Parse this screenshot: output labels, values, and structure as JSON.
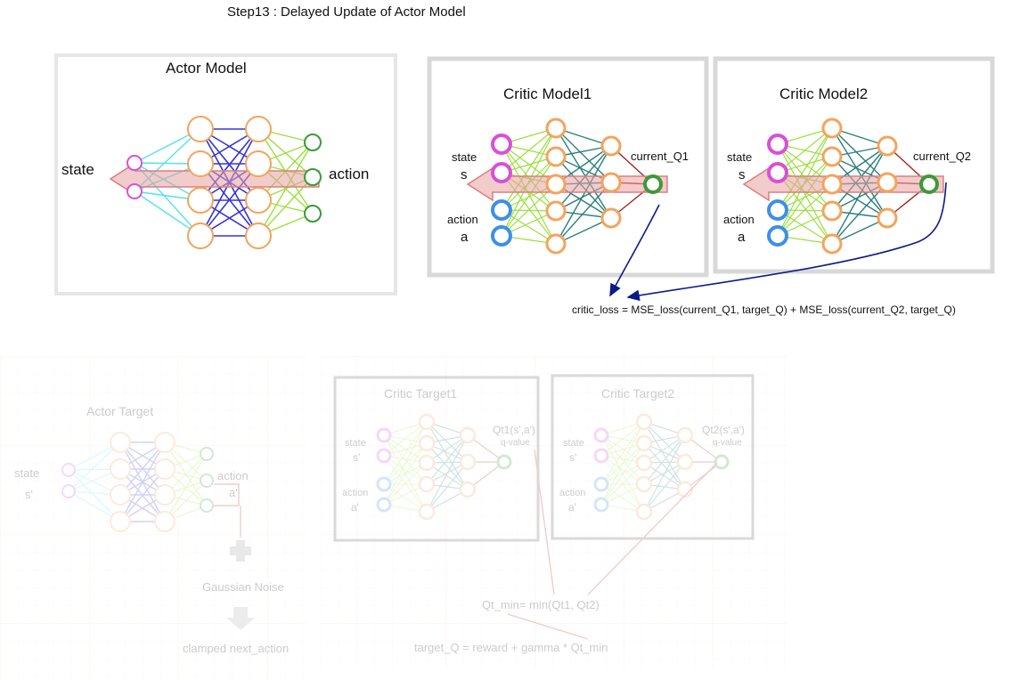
{
  "title": "Step13 : Delayed Update of Actor Model",
  "actor_model": {
    "title": "Actor Model",
    "input_label": "state",
    "output_label": "action"
  },
  "critic1": {
    "title": "Critic Model1",
    "state_label": "state",
    "state_symbol": "s",
    "action_label": "action",
    "action_symbol": "a",
    "output_label": "current_Q1"
  },
  "critic2": {
    "title": "Critic Model2",
    "state_label": "state",
    "state_symbol": "s",
    "action_label": "action",
    "action_symbol": "a",
    "output_label": "current_Q2"
  },
  "loss_formula": "critic_loss = MSE_loss(current_Q1, target_Q) + MSE_loss(current_Q2, target_Q)",
  "actor_target": {
    "title": "Actor Target",
    "state_label": "state",
    "state_symbol": "s'",
    "action_label": "action",
    "action_symbol": "a'",
    "noise_label": "Gaussian Noise",
    "clamped_label": "clamped next_action"
  },
  "critic_target1": {
    "title": "Critic Target1",
    "state_label": "state",
    "state_symbol": "s'",
    "action_label": "action",
    "action_symbol": "a'",
    "output_label": "Qt1(s',a')",
    "output_sub": "q-value"
  },
  "critic_target2": {
    "title": "Critic Target2",
    "state_label": "state",
    "state_symbol": "s'",
    "action_label": "action",
    "action_symbol": "a'",
    "output_label": "Qt2(s',a')",
    "output_sub": "q-value"
  },
  "qt_min_formula": "Qt_min= min(Qt1, Qt2)",
  "target_q_formula": "target_Q = reward + gamma *  Qt_min",
  "colors": {
    "orange": "#f5a35a",
    "magenta": "#d850d8",
    "blue": "#3d8fe8",
    "green": "#3a9a3a",
    "teal": "#2a7f7f",
    "cyan": "#55e0f0",
    "lime": "#9be03c",
    "indigo": "#3535d8",
    "darkred": "#a82020",
    "navy": "#0a1a8a",
    "highlight": "#e8a0a0"
  }
}
